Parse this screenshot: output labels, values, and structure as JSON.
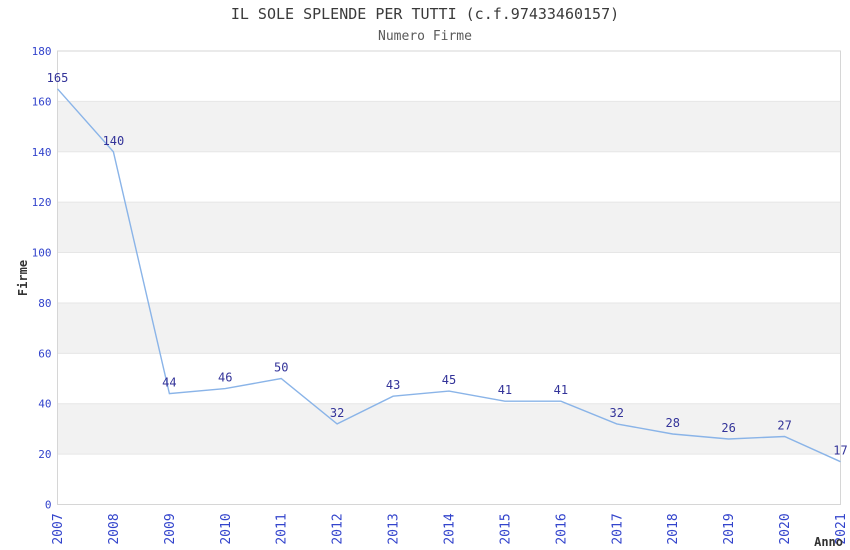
{
  "chart_data": {
    "type": "line",
    "title": "IL SOLE SPLENDE PER TUTTI (c.f.97433460157)",
    "subtitle": "Numero Firme",
    "xlabel": "Anno",
    "ylabel": "Firme",
    "categories": [
      "2007",
      "2008",
      "2009",
      "2010",
      "2011",
      "2012",
      "2013",
      "2014",
      "2015",
      "2016",
      "2017",
      "2018",
      "2019",
      "2020",
      "2021"
    ],
    "series": [
      {
        "name": "Numero Firme",
        "values": [
          165,
          140,
          44,
          46,
          50,
          32,
          43,
          45,
          41,
          41,
          32,
          28,
          26,
          27,
          17
        ]
      }
    ],
    "ylim": [
      0,
      180
    ],
    "ytick_step": 20,
    "yticks": [
      0,
      20,
      40,
      60,
      80,
      100,
      120,
      140,
      160,
      180
    ],
    "grid": "horizontal-on",
    "legend": "none",
    "plot_style": "alternating-horizontal-bands",
    "colors": {
      "line": "#8ab4e8",
      "tick_label": "#3344cc",
      "data_label": "#333399",
      "title": "#3a3a3a",
      "subtitle": "#5a5a5a",
      "axis_title": "#333333",
      "band": "#f2f2f2",
      "gridline": "#e6e6e6",
      "border": "#d6d6d6",
      "background": "#ffffff"
    }
  }
}
